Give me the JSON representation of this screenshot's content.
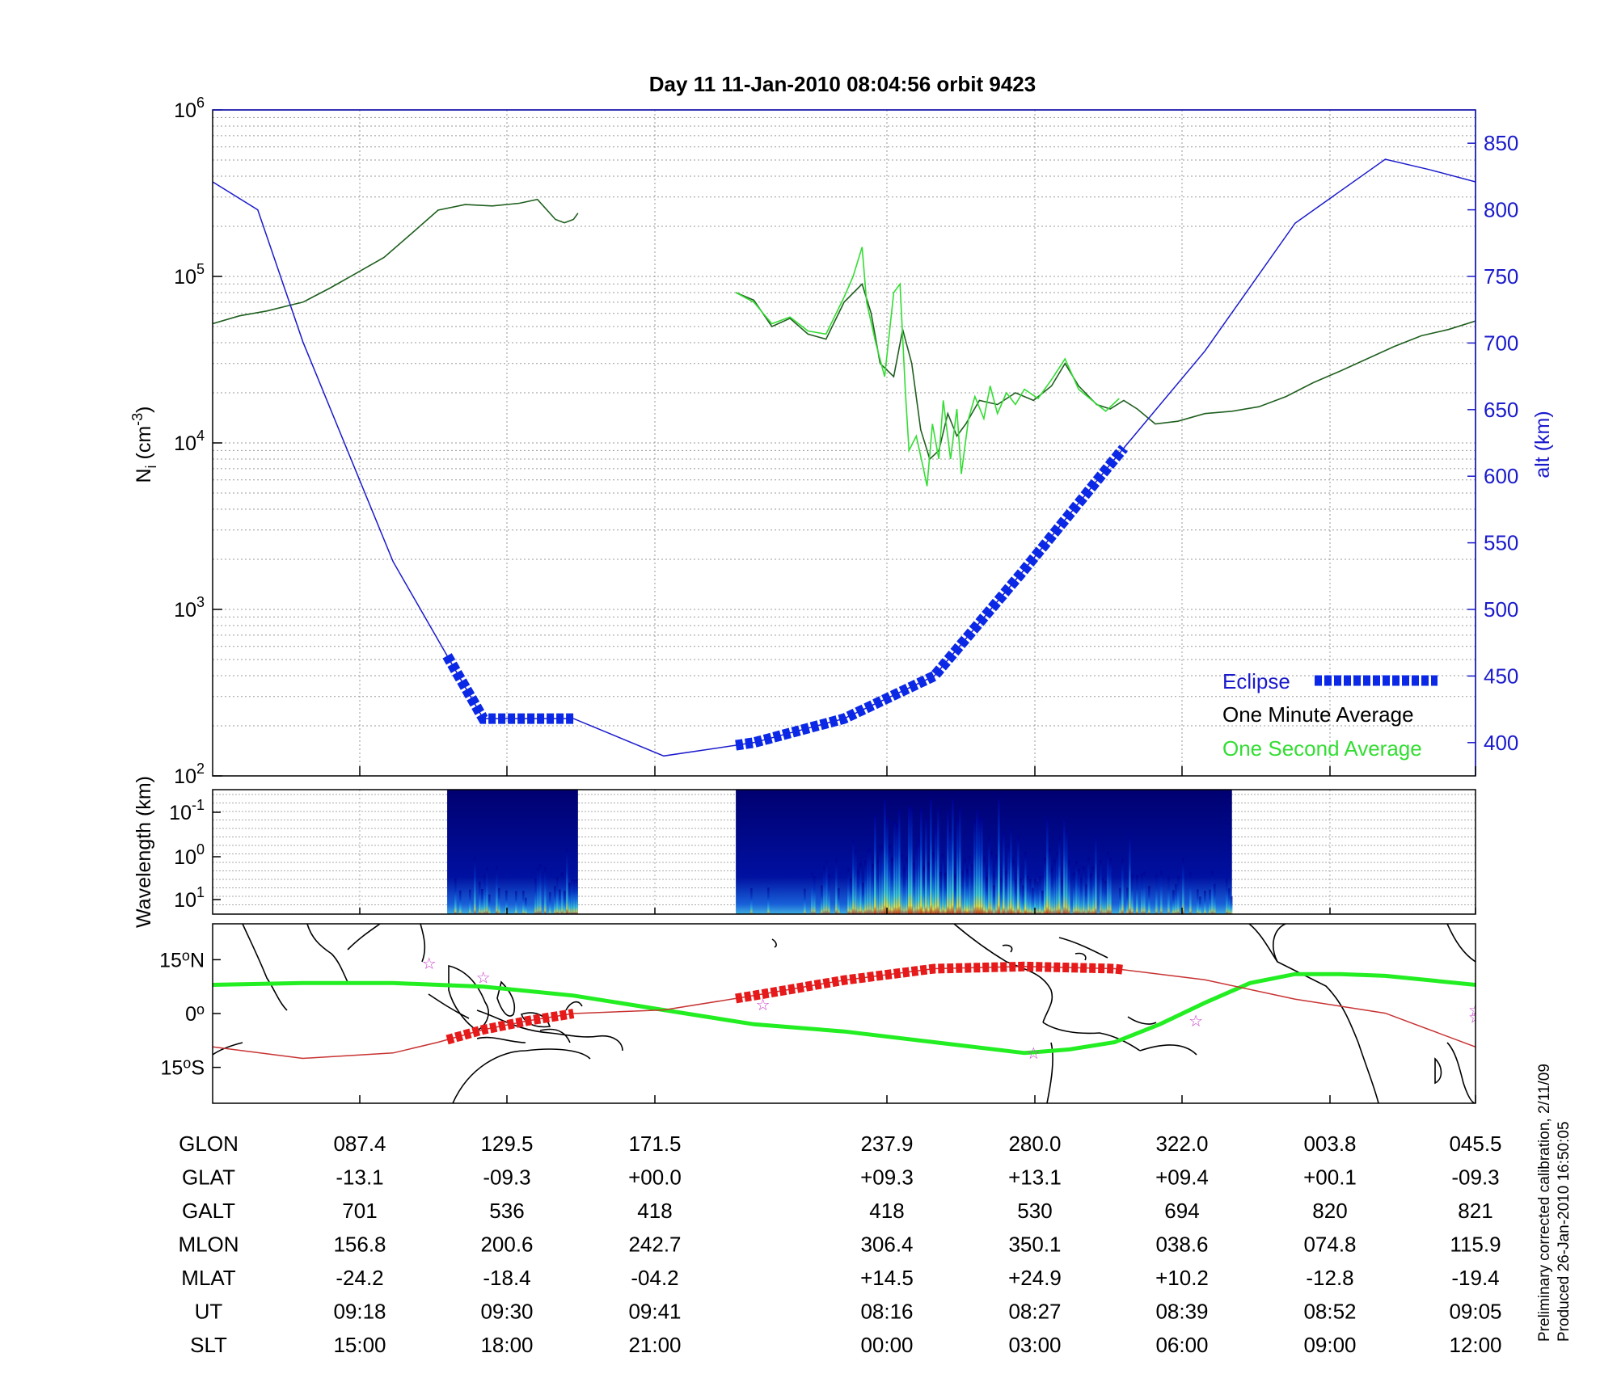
{
  "title": "Day 11  11-Jan-2010 08:04:56   orbit 9423",
  "footnote_lines": [
    "Preliminary corrected calibration, 2/11/09",
    "Produced 26-Jan-2010 16:50:05"
  ],
  "colors": {
    "density_minute": "#000000",
    "density_second": "#33dd33",
    "altitude": "#1a1acc",
    "eclipse": "#0a28e6",
    "track_green": "#22ee22",
    "track_red": "#e61a1a",
    "thin_track": "#c83232",
    "star": "#cc44cc"
  },
  "chart_data": [
    {
      "type": "line",
      "panel": "density",
      "ylabel": "N_i (cm^-3)",
      "ylabel_main": "N",
      "ylabel_sub": "i",
      "ylabel_unit": " (cm",
      "ylabel_exp": "-3",
      "ylabel_close": ")",
      "yscale": "log",
      "ylim": [
        100,
        1000000
      ],
      "y_ticks": [
        {
          "base": "10",
          "exp": "2",
          "value": 100
        },
        {
          "base": "10",
          "exp": "3",
          "value": 1000
        },
        {
          "base": "10",
          "exp": "4",
          "value": 10000
        },
        {
          "base": "10",
          "exp": "5",
          "value": 100000
        },
        {
          "base": "10",
          "exp": "6",
          "value": 1000000
        }
      ],
      "y2label": "alt (km)",
      "y2lim": [
        375,
        875
      ],
      "y2_ticks": [
        400,
        450,
        500,
        550,
        600,
        650,
        700,
        750,
        800,
        850
      ],
      "legend": {
        "position": "bottom-right",
        "entries": [
          "Eclipse",
          "One Minute Average",
          "One Second Average"
        ]
      },
      "series": [
        {
          "name": "One Minute Average",
          "color_key": "density_minute",
          "segments": [
            [
              [
                0,
                52000
              ],
              [
                0.3,
                58000
              ],
              [
                0.6,
                62000
              ],
              [
                0.9,
                68000
              ],
              [
                1.0,
                70000
              ],
              [
                1.3,
                85000
              ],
              [
                1.6,
                105000
              ],
              [
                1.9,
                130000
              ],
              [
                2.2,
                180000
              ],
              [
                2.5,
                250000
              ],
              [
                2.8,
                270000
              ],
              [
                3.1,
                265000
              ],
              [
                3.4,
                275000
              ],
              [
                3.6,
                290000
              ],
              [
                3.8,
                220000
              ],
              [
                3.9,
                210000
              ],
              [
                4.0,
                220000
              ],
              [
                4.05,
                240000
              ]
            ],
            [
              [
                5.8,
                80000
              ],
              [
                6.0,
                72000
              ],
              [
                6.2,
                50000
              ],
              [
                6.4,
                56000
              ],
              [
                6.6,
                45000
              ],
              [
                6.8,
                42000
              ],
              [
                7.0,
                70000
              ],
              [
                7.2,
                90000
              ],
              [
                7.3,
                60000
              ],
              [
                7.4,
                30000
              ],
              [
                7.55,
                25000
              ],
              [
                7.65,
                48000
              ],
              [
                7.75,
                30000
              ],
              [
                7.85,
                12000
              ],
              [
                7.95,
                8000
              ],
              [
                8.05,
                9000
              ],
              [
                8.15,
                15000
              ],
              [
                8.25,
                11000
              ],
              [
                8.35,
                13000
              ],
              [
                8.5,
                18000
              ],
              [
                8.7,
                17000
              ],
              [
                8.9,
                20000
              ],
              [
                9.1,
                18000
              ],
              [
                9.3,
                22000
              ],
              [
                9.45,
                30000
              ],
              [
                9.6,
                22000
              ],
              [
                9.8,
                17000
              ],
              [
                9.95,
                16000
              ],
              [
                10.1,
                18000
              ],
              [
                10.25,
                16000
              ],
              [
                10.45,
                13000
              ],
              [
                10.7,
                13500
              ],
              [
                11.0,
                15000
              ],
              [
                11.3,
                15500
              ],
              [
                11.6,
                16500
              ],
              [
                11.9,
                19000
              ],
              [
                12.2,
                23000
              ],
              [
                12.5,
                27000
              ],
              [
                12.8,
                32000
              ],
              [
                13.1,
                38000
              ],
              [
                13.4,
                44000
              ],
              [
                13.7,
                48000
              ],
              [
                14.0,
                54000
              ]
            ]
          ]
        },
        {
          "name": "One Second Average",
          "color_key": "density_second",
          "segments": [
            [
              [
                5.8,
                80000
              ],
              [
                6.0,
                70000
              ],
              [
                6.2,
                52000
              ],
              [
                6.4,
                57000
              ],
              [
                6.6,
                47000
              ],
              [
                6.8,
                45000
              ],
              [
                7.0,
                75000
              ],
              [
                7.1,
                100000
              ],
              [
                7.2,
                150000
              ],
              [
                7.25,
                70000
              ],
              [
                7.35,
                40000
              ],
              [
                7.45,
                25000
              ],
              [
                7.55,
                80000
              ],
              [
                7.62,
                90000
              ],
              [
                7.68,
                20000
              ],
              [
                7.72,
                9000
              ],
              [
                7.8,
                11000
              ],
              [
                7.88,
                7000
              ],
              [
                7.92,
                5500
              ],
              [
                7.98,
                13000
              ],
              [
                8.05,
                8000
              ],
              [
                8.1,
                18000
              ],
              [
                8.18,
                8000
              ],
              [
                8.25,
                16000
              ],
              [
                8.3,
                6500
              ],
              [
                8.38,
                14000
              ],
              [
                8.45,
                19000
              ],
              [
                8.55,
                14000
              ],
              [
                8.62,
                22000
              ],
              [
                8.7,
                15000
              ],
              [
                8.8,
                20000
              ],
              [
                8.9,
                17000
              ],
              [
                9.0,
                21000
              ],
              [
                9.15,
                18500
              ],
              [
                9.3,
                24000
              ],
              [
                9.45,
                32000
              ],
              [
                9.6,
                21000
              ],
              [
                9.75,
                18000
              ],
              [
                9.9,
                15500
              ],
              [
                10.05,
                18500
              ]
            ]
          ]
        },
        {
          "name": "Altitude",
          "axis": "y2",
          "color_key": "altitude",
          "points": [
            [
              0,
              821
            ],
            [
              0.5,
              800
            ],
            [
              1.0,
              701
            ],
            [
              2.0,
              536
            ],
            [
              3.0,
              418
            ],
            [
              4.0,
              418
            ],
            [
              5.0,
              390
            ],
            [
              6.0,
              400
            ],
            [
              7.0,
              418
            ],
            [
              8.0,
              450
            ],
            [
              9.0,
              530
            ],
            [
              10.0,
              613
            ],
            [
              11.0,
              694
            ],
            [
              12.0,
              790
            ],
            [
              13.0,
              838
            ],
            [
              13.5,
              830
            ],
            [
              14.0,
              821
            ]
          ]
        },
        {
          "name": "Eclipse",
          "axis": "y2",
          "color_key": "eclipse",
          "segments": [
            [
              2.6,
              4.0
            ],
            [
              5.8,
              10.1
            ]
          ]
        }
      ]
    },
    {
      "type": "heatmap",
      "panel": "wavelength",
      "ylabel": "Wavelength (km)",
      "yscale": "log",
      "y_ticks": [
        {
          "base": "10",
          "exp": "-1"
        },
        {
          "base": "10",
          "exp": "0"
        },
        {
          "base": "10",
          "exp": "1"
        }
      ],
      "data_segments": [
        [
          2.6,
          4.05
        ],
        [
          5.8,
          11.3
        ]
      ],
      "intensity_profile": [
        [
          2.6,
          0.4
        ],
        [
          3.5,
          0.3
        ],
        [
          4.0,
          0.5
        ],
        [
          5.8,
          0.3
        ],
        [
          6.5,
          0.3
        ],
        [
          7.0,
          0.45
        ],
        [
          7.4,
          0.85
        ],
        [
          8.0,
          0.95
        ],
        [
          8.5,
          0.8
        ],
        [
          9.0,
          0.7
        ],
        [
          9.5,
          0.6
        ],
        [
          10.0,
          0.5
        ],
        [
          10.5,
          0.4
        ],
        [
          11.3,
          0.3
        ]
      ],
      "colormap": "jet"
    },
    {
      "type": "line",
      "panel": "map",
      "y_ticks": [
        {
          "value": 15,
          "label": "15",
          "suffix": "N"
        },
        {
          "value": 0,
          "label": "0",
          "suffix": ""
        },
        {
          "value": -15,
          "label": "15",
          "suffix": "S"
        }
      ],
      "ylim": [
        -25,
        25
      ],
      "series": [
        {
          "name": "Magnetic equator",
          "color_key": "track_green",
          "points": [
            [
              0,
              8
            ],
            [
              1,
              8.5
            ],
            [
              2,
              8.5
            ],
            [
              3,
              7.5
            ],
            [
              4,
              5
            ],
            [
              5,
              1
            ],
            [
              6,
              -3
            ],
            [
              7,
              -5
            ],
            [
              8,
              -8
            ],
            [
              9,
              -11
            ],
            [
              9.5,
              -10
            ],
            [
              10,
              -8
            ],
            [
              10.5,
              -3
            ],
            [
              11,
              3
            ],
            [
              11.5,
              8.5
            ],
            [
              12,
              11
            ],
            [
              12.5,
              11
            ],
            [
              13,
              10.5
            ],
            [
              14,
              8
            ]
          ]
        },
        {
          "name": "Orbit track",
          "color_key": "thin_track",
          "points": [
            [
              0,
              -9.3
            ],
            [
              1,
              -12.5
            ],
            [
              2,
              -11
            ],
            [
              2.5,
              -8
            ],
            [
              3,
              -4.5
            ],
            [
              3.5,
              -2
            ],
            [
              4,
              0
            ],
            [
              5,
              1
            ],
            [
              6,
              5
            ],
            [
              7,
              9.3
            ],
            [
              8,
              12.5
            ],
            [
              9,
              13.1
            ],
            [
              10,
              12.5
            ],
            [
              11,
              9.4
            ],
            [
              12,
              4
            ],
            [
              13,
              0.1
            ],
            [
              14,
              -9.3
            ]
          ]
        },
        {
          "name": "Eclipse track",
          "color_key": "track_red",
          "segments": [
            [
              2.6,
              4.0
            ],
            [
              5.8,
              10.1
            ]
          ]
        }
      ],
      "stars": [
        [
          2.4,
          14
        ],
        [
          3.0,
          10
        ],
        [
          6.1,
          2.5
        ],
        [
          9.1,
          -11
        ],
        [
          10.9,
          -2
        ],
        [
          14,
          1
        ],
        [
          14,
          -1
        ]
      ]
    }
  ],
  "table": {
    "row_labels": [
      "GLON",
      "GLAT",
      "GALT",
      "MLON",
      "MLAT",
      "UT",
      "SLT"
    ],
    "columns": [
      {
        "x": 1.0,
        "values": [
          "087.4",
          "-13.1",
          "701",
          "156.8",
          "-24.2",
          "09:18",
          "15:00"
        ]
      },
      {
        "x": 2.0,
        "values": [
          "129.5",
          "-09.3",
          "536",
          "200.6",
          "-18.4",
          "09:30",
          "18:00"
        ]
      },
      {
        "x": 3.0,
        "values": [
          "171.5",
          "+00.0",
          "418",
          "242.7",
          "-04.2",
          "09:41",
          "21:00"
        ]
      },
      {
        "x": 4.6,
        "values": [
          "237.9",
          "+09.3",
          "418",
          "306.4",
          "+14.5",
          "08:16",
          "00:00"
        ]
      },
      {
        "x": 5.6,
        "values": [
          "280.0",
          "+13.1",
          "530",
          "350.1",
          "+24.9",
          "08:27",
          "03:00"
        ]
      },
      {
        "x": 6.6,
        "values": [
          "322.0",
          "+09.4",
          "694",
          "038.6",
          "+10.2",
          "08:39",
          "06:00"
        ]
      },
      {
        "x": 7.6,
        "values": [
          "003.8",
          "+00.1",
          "820",
          "074.8",
          "-12.8",
          "08:52",
          "09:00"
        ]
      },
      {
        "x": 8.6,
        "values": [
          "045.5",
          "-09.3",
          "821",
          "115.9",
          "-19.4",
          "09:05",
          "12:00"
        ]
      }
    ]
  }
}
